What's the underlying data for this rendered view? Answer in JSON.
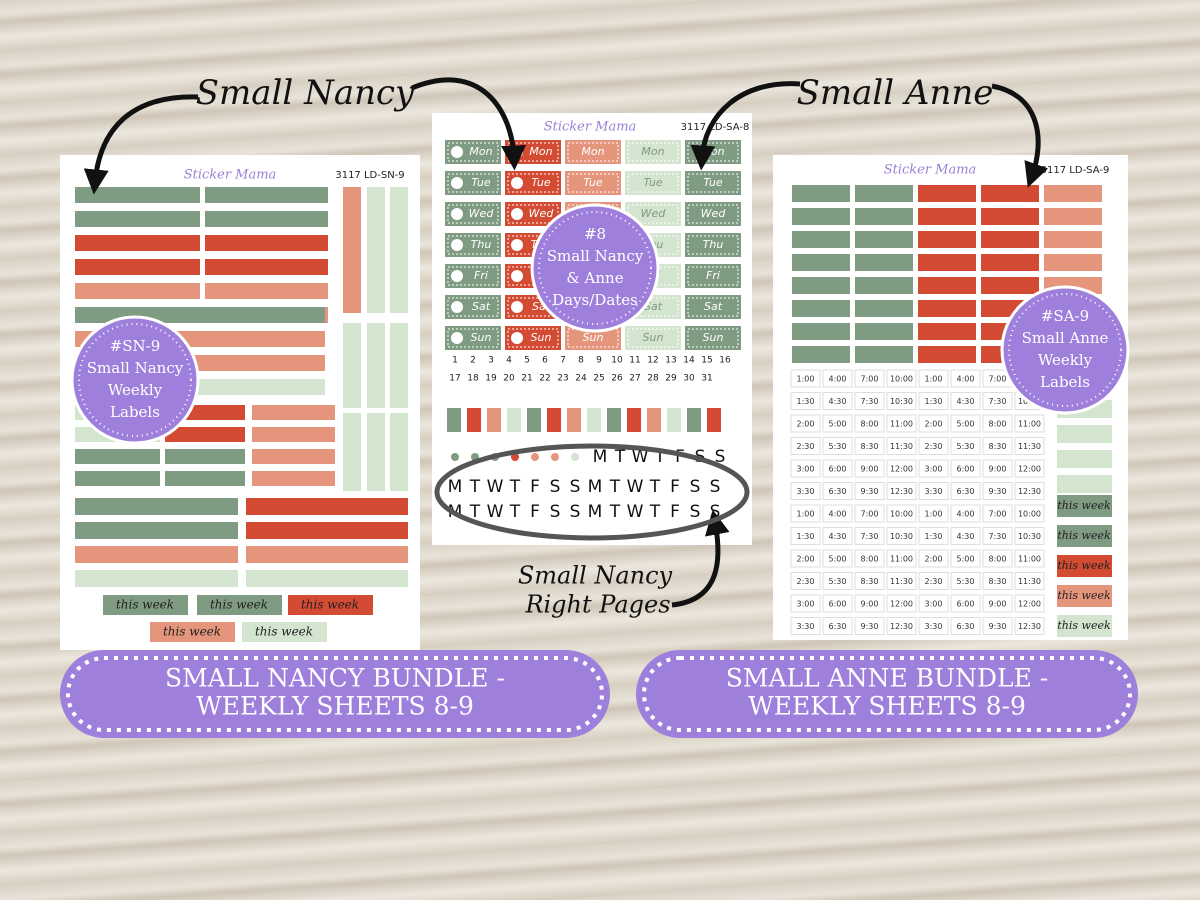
{
  "annotations": {
    "small_nancy": "Small Nancy",
    "small_anne": "Small Anne",
    "right_pages": [
      "Small Nancy",
      "Right Pages"
    ]
  },
  "sheets": [
    {
      "brand": "Sticker Mama",
      "code": "3117 LD-SN-9",
      "badge": [
        "#SN-9",
        "Small Nancy",
        "Weekly",
        "Labels"
      ]
    },
    {
      "brand": "Sticker Mama",
      "code": "3117 LD-SA-8",
      "badge": [
        "#8",
        "Small Nancy",
        "& Anne",
        "Days/Dates"
      ]
    },
    {
      "brand": "Sticker Mama",
      "code": "3117 LD-SA-9",
      "badge": [
        "#SA-9",
        "Small Anne",
        "Weekly",
        "Labels"
      ]
    }
  ],
  "this_week": "this week",
  "days": [
    "Mon",
    "Tue",
    "Wed",
    "Thu",
    "Fri",
    "Sat",
    "Sun"
  ],
  "dates": [
    1,
    2,
    3,
    4,
    5,
    6,
    7,
    8,
    9,
    10,
    11,
    12,
    13,
    14,
    15,
    16,
    17,
    18,
    19,
    20,
    21,
    22,
    23,
    24,
    25,
    26,
    27,
    28,
    29,
    30,
    31
  ],
  "letters": [
    "M",
    "T",
    "W",
    "T",
    "F",
    "S",
    "S"
  ],
  "times": [
    [
      "1:00",
      "4:00",
      "7:00",
      "10:00"
    ],
    [
      "1:30",
      "4:30",
      "7:30",
      "10:30"
    ],
    [
      "2:00",
      "5:00",
      "8:00",
      "11:00"
    ],
    [
      "2:30",
      "5:30",
      "8:30",
      "11:30"
    ],
    [
      "3:00",
      "6:00",
      "9:00",
      "12:00"
    ],
    [
      "3:30",
      "6:30",
      "9:30",
      "12:30"
    ]
  ],
  "banners": [
    [
      "SMALL NANCY BUNDLE -",
      "WEEKLY SHEETS 8-9"
    ],
    [
      "SMALL ANNE BUNDLE -",
      "WEEKLY SHEETS 8-9"
    ]
  ]
}
